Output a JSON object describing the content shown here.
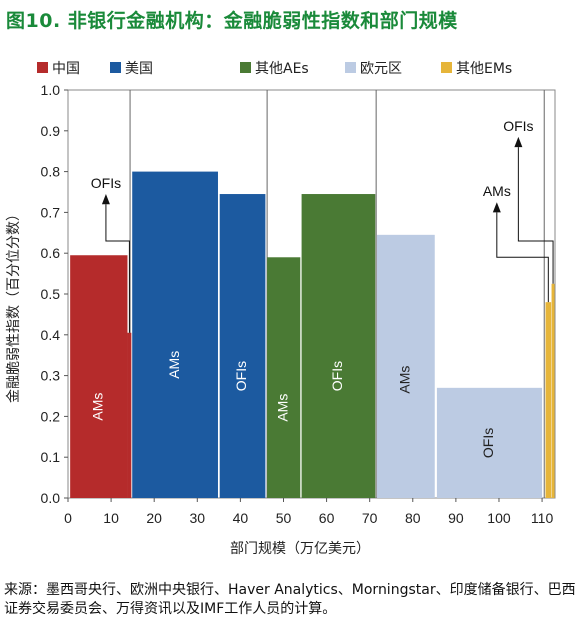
{
  "title": "图10. 非银行金融机构：金融脆弱性指数和部门规模",
  "source_note": "来源：墨西哥央行、欧洲中央银行、Haver Analytics、Morningstar、印度储备银行、巴西证券交易委员会、万得资讯以及IMF工作人员的计算。",
  "colors": {
    "china": "#b52b2b",
    "usa": "#1c5aa0",
    "other_aes": "#4a7a34",
    "euro_area": "#bccbe3",
    "other_ems": "#e6b53a"
  },
  "chart_data": {
    "type": "bar",
    "xlabel": "部门规模（万亿美元）",
    "ylabel": "金融脆弱性指数（百分位分数）",
    "xlim": [
      0,
      113
    ],
    "ylim": [
      0,
      1.0
    ],
    "xticks": [
      "0",
      "10",
      "20",
      "30",
      "40",
      "50",
      "60",
      "70",
      "80",
      "90",
      "100",
      "110"
    ],
    "yticks": [
      "0.0",
      "0.1",
      "0.2",
      "0.3",
      "0.4",
      "0.5",
      "0.6",
      "0.7",
      "0.8",
      "0.9",
      "1.0"
    ],
    "legend": [
      "中国",
      "美国",
      "其他AEs",
      "欧元区",
      "其他EMs"
    ],
    "legend_placement": "top",
    "group_boundaries": [
      14.4,
      46.2,
      71.5,
      110.5
    ],
    "bars": [
      {
        "group": "中国",
        "x_start": 0.5,
        "x_end": 13.8,
        "value": 0.595,
        "label": "AMs"
      },
      {
        "group": "中国",
        "x_start": 13.8,
        "x_end": 14.7,
        "value": 0.405,
        "label": ""
      },
      {
        "group": "美国",
        "x_start": 14.9,
        "x_end": 34.8,
        "value": 0.8,
        "label": "AMs"
      },
      {
        "group": "美国",
        "x_start": 35.2,
        "x_end": 45.8,
        "value": 0.745,
        "label": "OFIs"
      },
      {
        "group": "其他AEs",
        "x_start": 46.2,
        "x_end": 53.9,
        "value": 0.59,
        "label": "AMs"
      },
      {
        "group": "其他AEs",
        "x_start": 54.2,
        "x_end": 71.3,
        "value": 0.745,
        "label": "OFIs"
      },
      {
        "group": "欧元区",
        "x_start": 71.7,
        "x_end": 85.1,
        "value": 0.645,
        "label": "AMs"
      },
      {
        "group": "欧元区",
        "x_start": 85.6,
        "x_end": 110.0,
        "value": 0.27,
        "label": "OFIs"
      },
      {
        "group": "其他EMs",
        "x_start": 110.8,
        "x_end": 112.1,
        "value": 0.48,
        "label": ""
      },
      {
        "group": "其他EMs",
        "x_start": 112.2,
        "x_end": 112.9,
        "value": 0.525,
        "label": ""
      }
    ],
    "annotations": [
      {
        "text": "OFIs",
        "group": "中国"
      },
      {
        "text": "AMs",
        "group": "其他EMs"
      },
      {
        "text": "OFIs",
        "group": "其他EMs"
      }
    ]
  }
}
